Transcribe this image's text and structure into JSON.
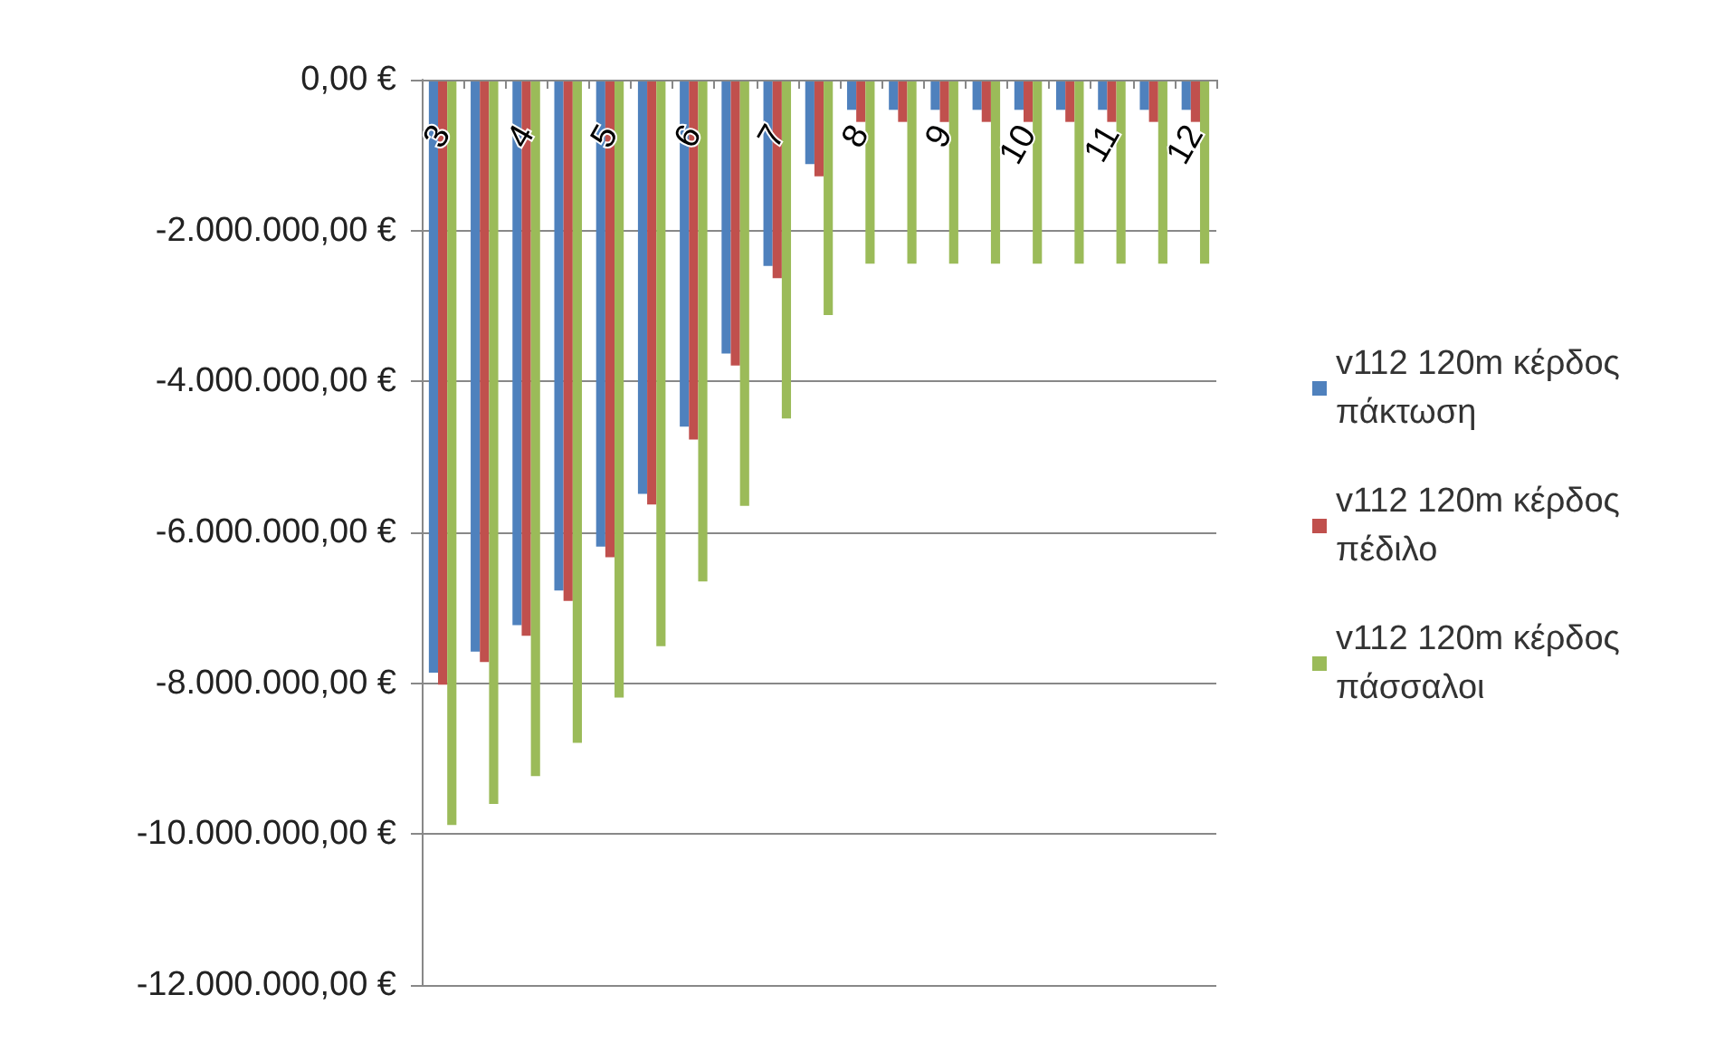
{
  "chart_data": {
    "type": "bar",
    "categories": [
      "3",
      null,
      "4",
      null,
      "5",
      null,
      "6",
      null,
      "7",
      null,
      "8",
      null,
      "9",
      null,
      "10",
      null,
      "11",
      null,
      "12"
    ],
    "series": [
      {
        "name": "v112 120m κέρδος πάκτωση",
        "color": "#4f81bd",
        "values": [
          -7860000,
          -7580000,
          -7230000,
          -6770000,
          -6190000,
          -5490000,
          -4600000,
          -3630000,
          -2470000,
          -1120000,
          -400000,
          -400000,
          -400000,
          -400000,
          -400000,
          -400000,
          -400000,
          -400000,
          -400000
        ]
      },
      {
        "name": "v112 120m κέρδος πέδιλο",
        "color": "#c0504d",
        "values": [
          -8020000,
          -7720000,
          -7370000,
          -6910000,
          -6330000,
          -5630000,
          -4770000,
          -3790000,
          -2630000,
          -1280000,
          -560000,
          -560000,
          -560000,
          -560000,
          -560000,
          -560000,
          -560000,
          -560000,
          -560000
        ]
      },
      {
        "name": "v112 120m κέρδος πάσσαλοι",
        "color": "#9bbb59",
        "values": [
          -9880000,
          -9600000,
          -9230000,
          -8790000,
          -8190000,
          -7510000,
          -6650000,
          -5650000,
          -4490000,
          -3120000,
          -2440000,
          -2440000,
          -2440000,
          -2440000,
          -2440000,
          -2440000,
          -2440000,
          -2440000,
          -2440000
        ]
      }
    ],
    "ylim": [
      -12000000,
      0
    ],
    "yticks": [
      {
        "value": 0,
        "label": "0,00 €"
      },
      {
        "value": -2000000,
        "label": "-2.000.000,00 €"
      },
      {
        "value": -4000000,
        "label": "-4.000.000,00 €"
      },
      {
        "value": -6000000,
        "label": "-6.000.000,00 €"
      },
      {
        "value": -8000000,
        "label": "-8.000.000,00 €"
      },
      {
        "value": -10000000,
        "label": "-10.000.000,00 €"
      },
      {
        "value": -12000000,
        "label": "-12.000.000,00 €"
      }
    ],
    "grid": "y",
    "legend": "right"
  }
}
